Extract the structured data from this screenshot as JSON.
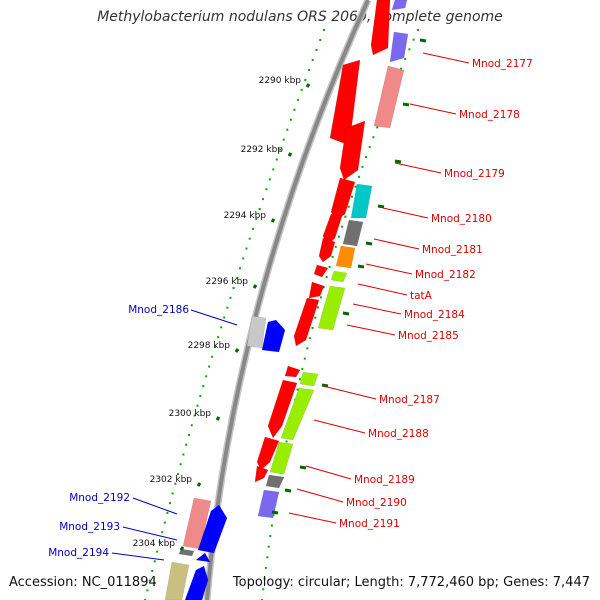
{
  "title": "Methylobacterium nodulans ORS 2060, complete genome",
  "footer": {
    "accession": "Accession: NC_011894",
    "topology": "Topology: circular; Length: 7,772,460 bp; Genes: 7,447"
  },
  "colors": {
    "forward_label": "#dd0000",
    "reverse_label": "#0000bb",
    "kbp_tick": "#006600",
    "backbone": "#888888",
    "gene_red": "#ff0000",
    "gene_lightred": "#f08a8a",
    "gene_blue": "#0000ff",
    "gene_lightblue": "#7b68ee",
    "gene_cyan": "#00c8c8",
    "gene_gray": "#707070",
    "gene_orange": "#ff8c00",
    "gene_green": "#99ee00",
    "gene_lightgray": "#c8c8c8",
    "gene_khaki": "#c8c080"
  },
  "scale": {
    "ticks": [
      "2290 kbp",
      "2292 kbp",
      "2294 kbp",
      "2296 kbp",
      "2298 kbp",
      "2300 kbp",
      "2302 kbp",
      "2304 kbp"
    ]
  },
  "forward_labels": [
    "Mnod_2177",
    "Mnod_2178",
    "Mnod_2179",
    "Mnod_2180",
    "Mnod_2181",
    "Mnod_2182",
    "tatA",
    "Mnod_2184",
    "Mnod_2185",
    "Mnod_2187",
    "Mnod_2188",
    "Mnod_2189",
    "Mnod_2190",
    "Mnod_2191"
  ],
  "reverse_labels": [
    "Mnod_2186",
    "Mnod_2192",
    "Mnod_2193",
    "Mnod_2194"
  ]
}
